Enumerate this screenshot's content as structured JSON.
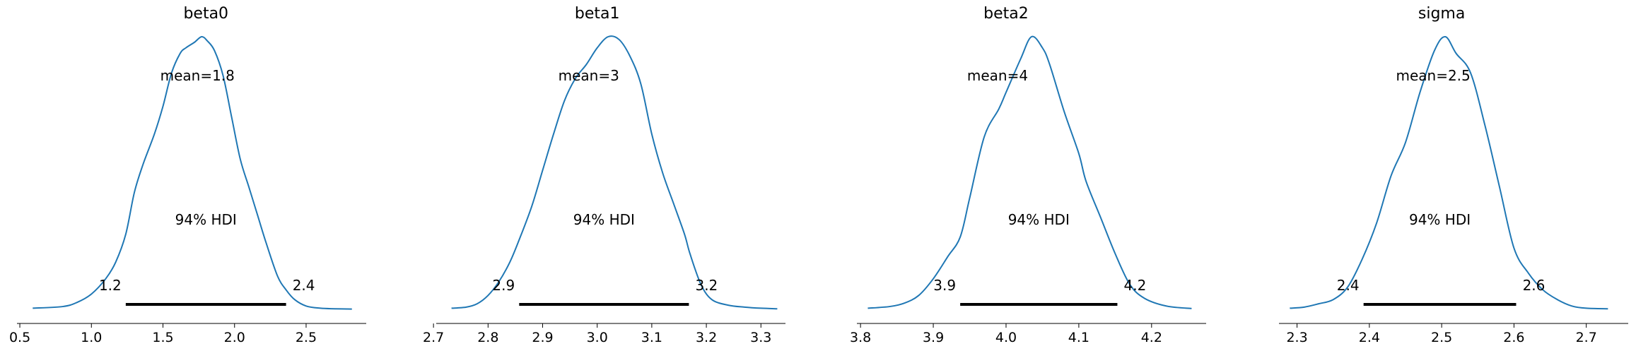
{
  "colors": {
    "density": "#1f77b4",
    "hdi": "#000000",
    "axis": "#000000"
  },
  "chart_data": [
    {
      "type": "line",
      "title": "beta0",
      "mean": 1.8,
      "mean_label": "mean=1.8",
      "hdi_label": "94% HDI",
      "hdi": [
        1.24,
        2.36
      ],
      "hdi_low_label": "1.2",
      "hdi_high_label": "2.4",
      "xlim": [
        0.48,
        2.92
      ],
      "xticks": [
        0.5,
        1.0,
        1.5,
        2.0,
        2.5
      ],
      "xtick_labels": [
        "0.5",
        "1.0",
        "1.5",
        "2.0",
        "2.5"
      ],
      "x": [
        0.59,
        0.8,
        0.9,
        1.0,
        1.1,
        1.17,
        1.24,
        1.3,
        1.36,
        1.44,
        1.5,
        1.56,
        1.62,
        1.66,
        1.72,
        1.77,
        1.81,
        1.86,
        1.92,
        1.98,
        2.04,
        2.1,
        2.16,
        2.22,
        2.3,
        2.36,
        2.42,
        2.5,
        2.6,
        2.7,
        2.82
      ],
      "density": [
        0.004,
        0.01,
        0.025,
        0.055,
        0.11,
        0.17,
        0.27,
        0.42,
        0.52,
        0.63,
        0.73,
        0.85,
        0.92,
        0.94,
        0.96,
        0.98,
        0.965,
        0.93,
        0.84,
        0.69,
        0.54,
        0.44,
        0.34,
        0.24,
        0.12,
        0.07,
        0.035,
        0.012,
        0.004,
        0.002,
        0.001
      ]
    },
    {
      "type": "line",
      "title": "beta1",
      "mean": 3,
      "mean_label": "mean=3",
      "hdi_label": "94% HDI",
      "hdi": [
        2.857,
        3.168
      ],
      "hdi_low_label": "2.9",
      "hdi_high_label": "3.2",
      "xlim": [
        2.705,
        3.345
      ],
      "xticks": [
        2.7,
        2.8,
        2.9,
        3.0,
        3.1,
        3.2,
        3.3
      ],
      "xtick_labels": [
        "2.7",
        "2.8",
        "2.9",
        "3.0",
        "3.1",
        "3.2",
        "3.3"
      ],
      "x": [
        2.733,
        2.76,
        2.78,
        2.8,
        2.82,
        2.84,
        2.857,
        2.88,
        2.9,
        2.92,
        2.94,
        2.96,
        2.98,
        3.0,
        3.02,
        3.04,
        3.06,
        3.08,
        3.1,
        3.12,
        3.14,
        3.16,
        3.17,
        3.19,
        3.21,
        3.24,
        3.27,
        3.3,
        3.33
      ],
      "density": [
        0.004,
        0.008,
        0.02,
        0.05,
        0.1,
        0.17,
        0.25,
        0.37,
        0.5,
        0.63,
        0.75,
        0.83,
        0.88,
        0.94,
        0.98,
        0.97,
        0.91,
        0.81,
        0.63,
        0.49,
        0.38,
        0.27,
        0.2,
        0.09,
        0.035,
        0.015,
        0.008,
        0.004,
        0.002
      ]
    },
    {
      "type": "line",
      "title": "beta2",
      "mean": 4,
      "mean_label": "mean=4",
      "hdi_label": "94% HDI",
      "hdi": [
        3.937,
        4.153
      ],
      "hdi_low_label": "3.9",
      "hdi_high_label": "4.2",
      "xlim": [
        3.795,
        4.275
      ],
      "xticks": [
        3.8,
        3.9,
        4.0,
        4.1,
        4.2
      ],
      "xtick_labels": [
        "3.8",
        "3.9",
        "4.0",
        "4.1",
        "4.2"
      ],
      "x": [
        3.81,
        3.84,
        3.86,
        3.88,
        3.9,
        3.92,
        3.937,
        3.95,
        3.97,
        3.99,
        4.0,
        4.02,
        4.035,
        4.05,
        4.06,
        4.08,
        4.1,
        4.11,
        4.13,
        4.15,
        4.17,
        4.19,
        4.22,
        4.255
      ],
      "density": [
        0.004,
        0.01,
        0.022,
        0.05,
        0.11,
        0.19,
        0.26,
        0.4,
        0.62,
        0.72,
        0.78,
        0.9,
        0.98,
        0.94,
        0.88,
        0.71,
        0.56,
        0.46,
        0.33,
        0.2,
        0.09,
        0.04,
        0.012,
        0.003
      ]
    },
    {
      "type": "line",
      "title": "sigma",
      "mean": 2.5,
      "mean_label": "mean=2.5",
      "hdi_label": "94% HDI",
      "hdi": [
        2.392,
        2.603
      ],
      "hdi_low_label": "2.4",
      "hdi_high_label": "2.6",
      "xlim": [
        2.275,
        2.758
      ],
      "xticks": [
        2.3,
        2.4,
        2.5,
        2.6,
        2.7
      ],
      "xtick_labels": [
        "2.3",
        "2.4",
        "2.5",
        "2.6",
        "2.7"
      ],
      "x": [
        2.29,
        2.31,
        2.33,
        2.35,
        2.37,
        2.39,
        2.41,
        2.43,
        2.45,
        2.47,
        2.49,
        2.505,
        2.52,
        2.54,
        2.56,
        2.58,
        2.6,
        2.62,
        2.64,
        2.66,
        2.68,
        2.7,
        2.73
      ],
      "density": [
        0.004,
        0.008,
        0.02,
        0.035,
        0.08,
        0.18,
        0.31,
        0.48,
        0.6,
        0.78,
        0.93,
        0.98,
        0.92,
        0.85,
        0.66,
        0.44,
        0.22,
        0.13,
        0.07,
        0.035,
        0.012,
        0.004,
        0.002
      ]
    }
  ]
}
